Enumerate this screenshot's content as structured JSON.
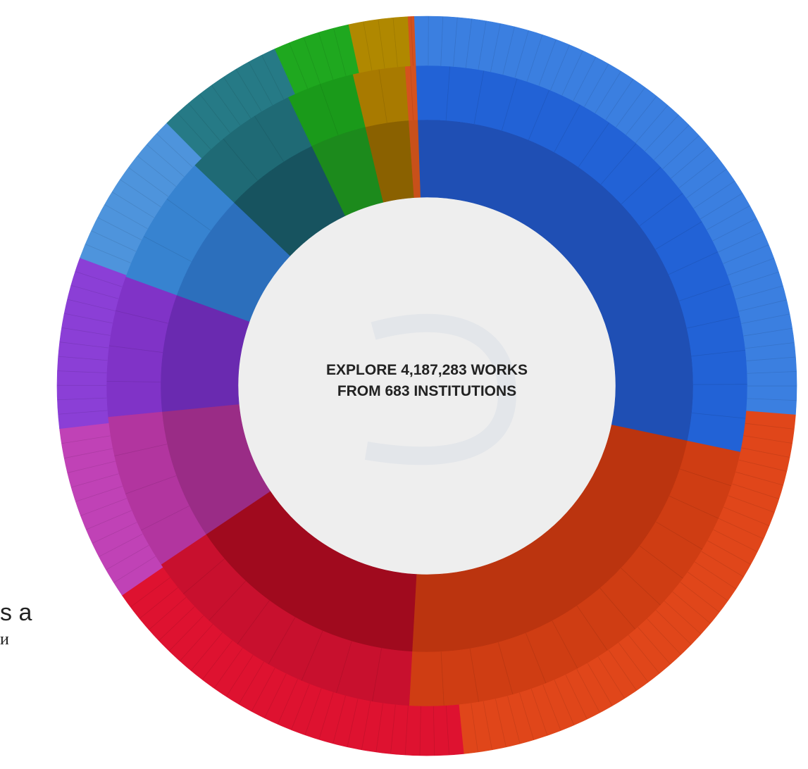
{
  "chart_data": {
    "type": "sunburst",
    "center_label": {
      "line1": "EXPLORE 4,187,283 WORKS",
      "line2": "FROM 683 INSTITUTIONS"
    },
    "start_angle_deg": -2,
    "rings": [
      {
        "name": "inner",
        "segments": [
          {
            "value": 110,
            "color": "#1f4fb4"
          },
          {
            "value": 86,
            "color": "#bb340f"
          },
          {
            "value": 56,
            "color": "#a00a1e"
          },
          {
            "value": 30,
            "color": "#9a2c86"
          },
          {
            "value": 27,
            "color": "#6a2ab0"
          },
          {
            "value": 25,
            "color": "#2c6fbc"
          },
          {
            "value": 22,
            "color": "#17535f"
          },
          {
            "value": 13,
            "color": "#1c8a1c"
          },
          {
            "value": 10,
            "color": "#8a6100"
          },
          {
            "value": 2,
            "color": "#c8501a"
          }
        ]
      },
      {
        "name": "middle",
        "segments": [
          {
            "value": 110,
            "color": "#2262d6"
          },
          {
            "value": 86,
            "color": "#cf3d13"
          },
          {
            "value": 56,
            "color": "#c8102e"
          },
          {
            "value": 30,
            "color": "#b2359f"
          },
          {
            "value": 27,
            "color": "#8033c7"
          },
          {
            "value": 25,
            "color": "#3783d0"
          },
          {
            "value": 22,
            "color": "#1f6a75"
          },
          {
            "value": 13,
            "color": "#1a9a1a"
          },
          {
            "value": 10,
            "color": "#a87a00"
          },
          {
            "value": 2,
            "color": "#d4521e"
          }
        ]
      },
      {
        "name": "outer",
        "segments": [
          {
            "value": 104,
            "color": "#3b7fe0"
          },
          {
            "value": 86,
            "color": "#e0461a"
          },
          {
            "value": 66,
            "color": "#de1230"
          },
          {
            "value": 30,
            "color": "#c042b6"
          },
          {
            "value": 29,
            "color": "#8b3fd6"
          },
          {
            "value": 27,
            "color": "#4e94dc"
          },
          {
            "value": 22,
            "color": "#267a86"
          },
          {
            "value": 13,
            "color": "#1fa81f"
          },
          {
            "value": 10,
            "color": "#b08800"
          },
          {
            "value": 1,
            "color": "#d4521e"
          }
        ]
      }
    ]
  },
  "side_fragment": {
    "line1": "s a",
    "line2": "и"
  }
}
